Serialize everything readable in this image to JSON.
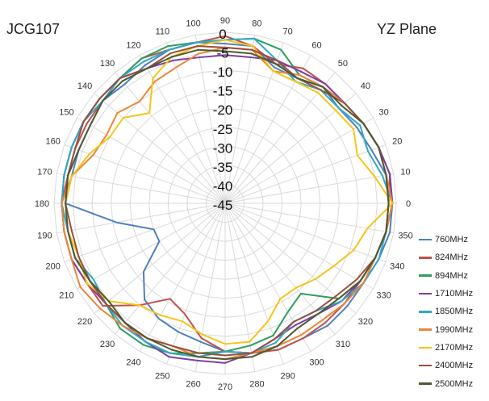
{
  "chart_data": {
    "type": "radar",
    "title": "JCG107",
    "subtitle": "YZ  Plane",
    "angle_labels": [
      0,
      10,
      20,
      30,
      40,
      50,
      60,
      70,
      80,
      90,
      100,
      110,
      120,
      130,
      140,
      150,
      160,
      170,
      180,
      190,
      200,
      210,
      220,
      230,
      240,
      250,
      260,
      270,
      280,
      290,
      300,
      310,
      320,
      330,
      340,
      350
    ],
    "radial_ticks": [
      0,
      -5,
      -10,
      -15,
      -20,
      -25,
      -30,
      -35,
      -40,
      -45
    ],
    "rlim": [
      -45,
      0
    ],
    "angle_step_deg": 10,
    "grid": true,
    "legend_position": "right",
    "series": [
      {
        "name": "760MHz",
        "color": "#4F81BD",
        "values": [
          -1,
          -2,
          -4,
          -5,
          -6,
          -5,
          -7,
          -7,
          -3,
          -3,
          -2,
          -2,
          -3,
          -4,
          -3,
          -4,
          -4,
          -4,
          -3,
          -16,
          -25,
          -25,
          -17,
          -12,
          -10,
          -9,
          -8,
          -6,
          -5,
          -4,
          -4,
          -3,
          -3,
          -3,
          -2,
          -1
        ]
      },
      {
        "name": "824MHz",
        "color": "#C0504D",
        "values": [
          -2,
          -1,
          -2,
          -3,
          -4,
          -4,
          -4,
          -6,
          -3,
          -1,
          -2,
          -2,
          -1,
          -2,
          -3,
          -3,
          -3,
          -3,
          -2,
          -2,
          -2,
          -3,
          -3,
          -10,
          -16,
          -14,
          -9,
          -6,
          -5,
          -4,
          -4,
          -4,
          -4,
          -4,
          -3,
          -2
        ]
      },
      {
        "name": "894MHz",
        "color": "#2E9E5E",
        "values": [
          -1,
          -1,
          -2,
          -3,
          -4,
          -5,
          -6,
          -2,
          -1,
          -2,
          -2,
          -1,
          -1,
          -2,
          -2,
          -2,
          -2,
          -2,
          -2,
          -3,
          -3,
          -4,
          -4,
          -2,
          -2,
          -3,
          -5,
          -6,
          -7,
          -8,
          -12,
          -14,
          -6,
          -4,
          -3,
          -2
        ]
      },
      {
        "name": "1710MHz",
        "color": "#7F3FA3",
        "values": [
          -1,
          -1,
          -2,
          -3,
          -4,
          -4,
          -5,
          -5,
          -6,
          -6,
          -6,
          -5,
          -4,
          -2,
          -2,
          -2,
          -2,
          -2,
          -2,
          -2,
          -2,
          -3,
          -4,
          -4,
          -3,
          -2,
          -3,
          -3,
          -5,
          -7,
          -8,
          -7,
          -5,
          -4,
          -3,
          -2
        ]
      },
      {
        "name": "1850MHz",
        "color": "#31A9C6",
        "values": [
          -1,
          -3,
          -5,
          -4,
          -6,
          -6,
          -8,
          -5,
          -1,
          -2,
          -2,
          -2,
          -2,
          -2,
          -3,
          -2,
          -2,
          -2,
          -2,
          -3,
          -3,
          -5,
          -4,
          -3,
          -3,
          -3,
          -4,
          -6,
          -5,
          -6,
          -9,
          -8,
          -5,
          -3,
          -2,
          -2
        ]
      },
      {
        "name": "1990MHz",
        "color": "#E8873A",
        "values": [
          -1,
          -2,
          -2,
          -3,
          -4,
          -5,
          -6,
          -8,
          -4,
          -4,
          -5,
          -7,
          -8,
          -10,
          -8,
          -9,
          -8,
          -4,
          -2,
          -2,
          -2,
          -1,
          -2,
          -3,
          -4,
          -5,
          -4,
          -4,
          -5,
          -5,
          -5,
          -5,
          -4,
          -3,
          -3,
          -2
        ]
      },
      {
        "name": "2170MHz",
        "color": "#F5C518",
        "values": [
          -1,
          -5,
          -8,
          -6,
          -7,
          -7,
          -8,
          -8,
          -3,
          -2,
          -3,
          -4,
          -7,
          -14,
          -10,
          -10,
          -7,
          -4,
          -3,
          -3,
          -4,
          -3,
          -5,
          -10,
          -11,
          -12,
          -10,
          -8,
          -8,
          -12,
          -16,
          -16,
          -14,
          -12,
          -9,
          -7
        ]
      },
      {
        "name": "2400MHz",
        "color": "#984F3D",
        "values": [
          -2,
          -2,
          -2,
          -3,
          -4,
          -6,
          -7,
          -5,
          -4,
          -4,
          -3,
          -3,
          -4,
          -2,
          -2,
          -2,
          -3,
          -3,
          -3,
          -4,
          -4,
          -4,
          -4,
          -4,
          -4,
          -5,
          -5,
          -5,
          -5,
          -7,
          -9,
          -8,
          -7,
          -5,
          -3,
          -2
        ]
      },
      {
        "name": "2500MHz",
        "color": "#4E5A31",
        "values": [
          -2,
          -2,
          -2,
          -3,
          -5,
          -5,
          -7,
          -6,
          -5,
          -5,
          -4,
          -4,
          -4,
          -3,
          -3,
          -4,
          -4,
          -3,
          -3,
          -3,
          -3,
          -4,
          -5,
          -4,
          -4,
          -4,
          -4,
          -4,
          -4,
          -5,
          -7,
          -7,
          -6,
          -4,
          -3,
          -2
        ]
      }
    ]
  }
}
